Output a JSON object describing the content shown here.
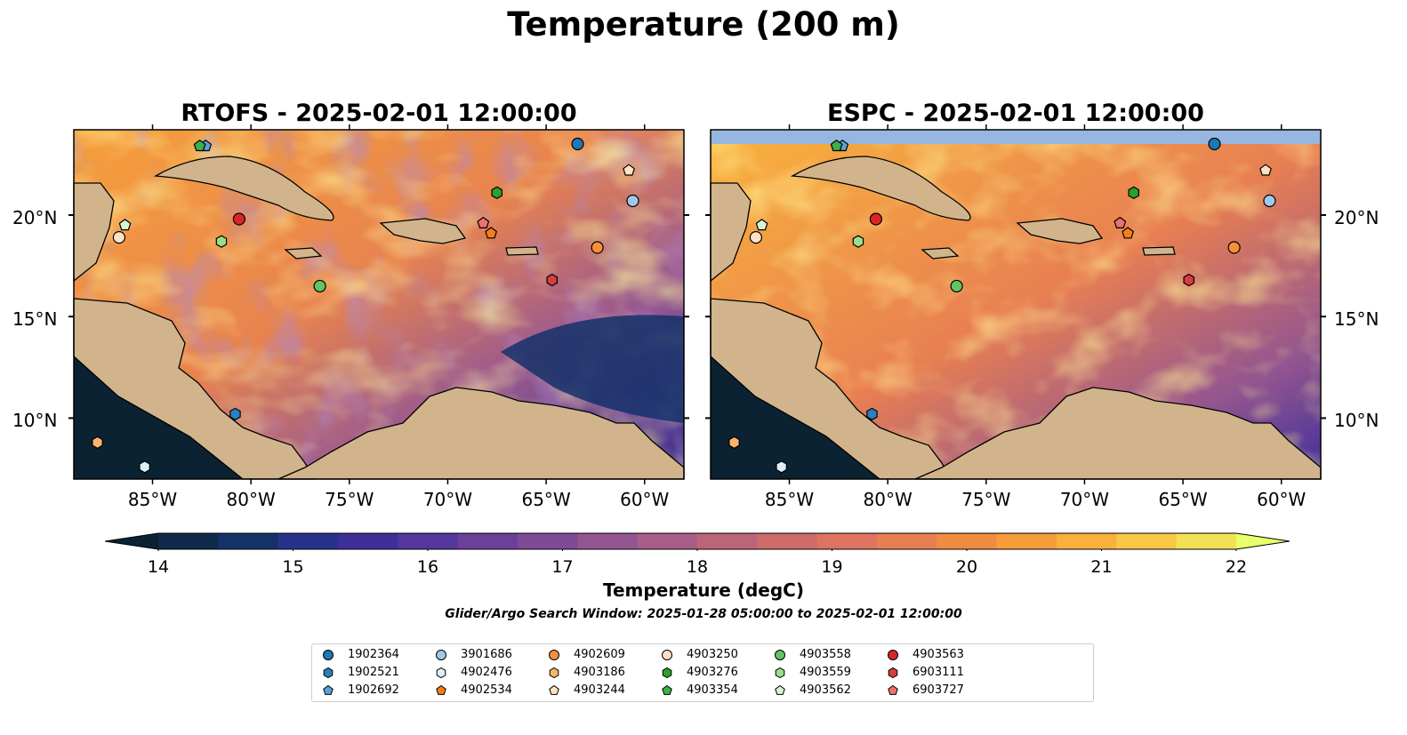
{
  "figure": {
    "title": "Temperature (200 m)",
    "search_window_note": "Glider/Argo Search Window: 2025-01-28 05:00:00 to 2025-02-01 12:00:00"
  },
  "panels": [
    {
      "title": "RTOFS - 2025-02-01 12:00:00",
      "model": "RTOFS"
    },
    {
      "title": "ESPC - 2025-02-01 12:00:00",
      "model": "ESPC"
    }
  ],
  "map_axes": {
    "lon_ticks": [
      "85°W",
      "80°W",
      "75°W",
      "70°W",
      "65°W",
      "60°W"
    ],
    "lat_ticks": [
      "20°N",
      "15°N",
      "10°N"
    ],
    "extent": {
      "lon_min": -89,
      "lon_max": -58,
      "lat_min": 7,
      "lat_max": 24.2
    },
    "land_color": "#d2b48c",
    "shallow_color": "#97b7e0"
  },
  "colorbar": {
    "label": "Temperature (degC)",
    "min": 14,
    "max": 22,
    "step": 0.5,
    "ticks": [
      "14",
      "15",
      "16",
      "17",
      "18",
      "19",
      "20",
      "21",
      "22"
    ],
    "extend": "both",
    "colors": [
      "#0f2a4a",
      "#14316a",
      "#27338a",
      "#3e2f9a",
      "#55379c",
      "#6b3f9a",
      "#7f4a96",
      "#935590",
      "#a85e86",
      "#bc6579",
      "#cd6c6b",
      "#dc7460",
      "#e87f52",
      "#f08c42",
      "#f69d3a",
      "#f8b13c",
      "#f9c846",
      "#f2e157"
    ],
    "under_color": "#0b2233",
    "over_color": "#e9ff6b"
  },
  "floats": [
    {
      "id": "1902364",
      "marker": "circle",
      "color": "#1f77b4",
      "lon": -63.4,
      "lat": 23.5
    },
    {
      "id": "1902521",
      "marker": "hexagon",
      "color": "#2a7fc0",
      "lon": -80.8,
      "lat": 10.2
    },
    {
      "id": "1902692",
      "marker": "pentagon",
      "color": "#5aa0dc",
      "lon": -82.3,
      "lat": 23.4
    },
    {
      "id": "3901686",
      "marker": "circle",
      "color": "#9ec9ec",
      "lon": -60.6,
      "lat": 20.7
    },
    {
      "id": "4902476",
      "marker": "hexagon",
      "color": "#dbeefa",
      "lon": -85.4,
      "lat": 7.6
    },
    {
      "id": "4902534",
      "marker": "pentagon",
      "color": "#f57f17",
      "lon": -67.8,
      "lat": 19.1
    },
    {
      "id": "4902609",
      "marker": "circle",
      "color": "#f68f3b",
      "lon": -62.4,
      "lat": 18.4
    },
    {
      "id": "4903186",
      "marker": "hexagon",
      "color": "#fbb36c",
      "lon": -87.8,
      "lat": 8.8
    },
    {
      "id": "4903244",
      "marker": "pentagon",
      "color": "#fde1c0",
      "lon": -60.8,
      "lat": 22.2
    },
    {
      "id": "4903250",
      "marker": "circle",
      "color": "#fde1c8",
      "lon": -86.7,
      "lat": 18.9
    },
    {
      "id": "4903276",
      "marker": "hexagon",
      "color": "#2ca02c",
      "lon": -67.5,
      "lat": 21.1
    },
    {
      "id": "4903354",
      "marker": "pentagon",
      "color": "#3cb04a",
      "lon": -82.6,
      "lat": 23.4
    },
    {
      "id": "4903558",
      "marker": "circle",
      "color": "#62c462",
      "lon": -76.5,
      "lat": 16.5
    },
    {
      "id": "4903559",
      "marker": "hexagon",
      "color": "#98df8a",
      "lon": -81.5,
      "lat": 18.7
    },
    {
      "id": "4903562",
      "marker": "pentagon",
      "color": "#d6f5d0",
      "lon": -86.4,
      "lat": 19.5
    },
    {
      "id": "4903563",
      "marker": "circle",
      "color": "#d62728",
      "lon": -80.6,
      "lat": 19.8
    },
    {
      "id": "6903111",
      "marker": "hexagon",
      "color": "#d83e3e",
      "lon": -64.7,
      "lat": 16.8
    },
    {
      "id": "6903727",
      "marker": "pentagon",
      "color": "#f07070",
      "lon": -68.2,
      "lat": 19.6
    }
  ]
}
